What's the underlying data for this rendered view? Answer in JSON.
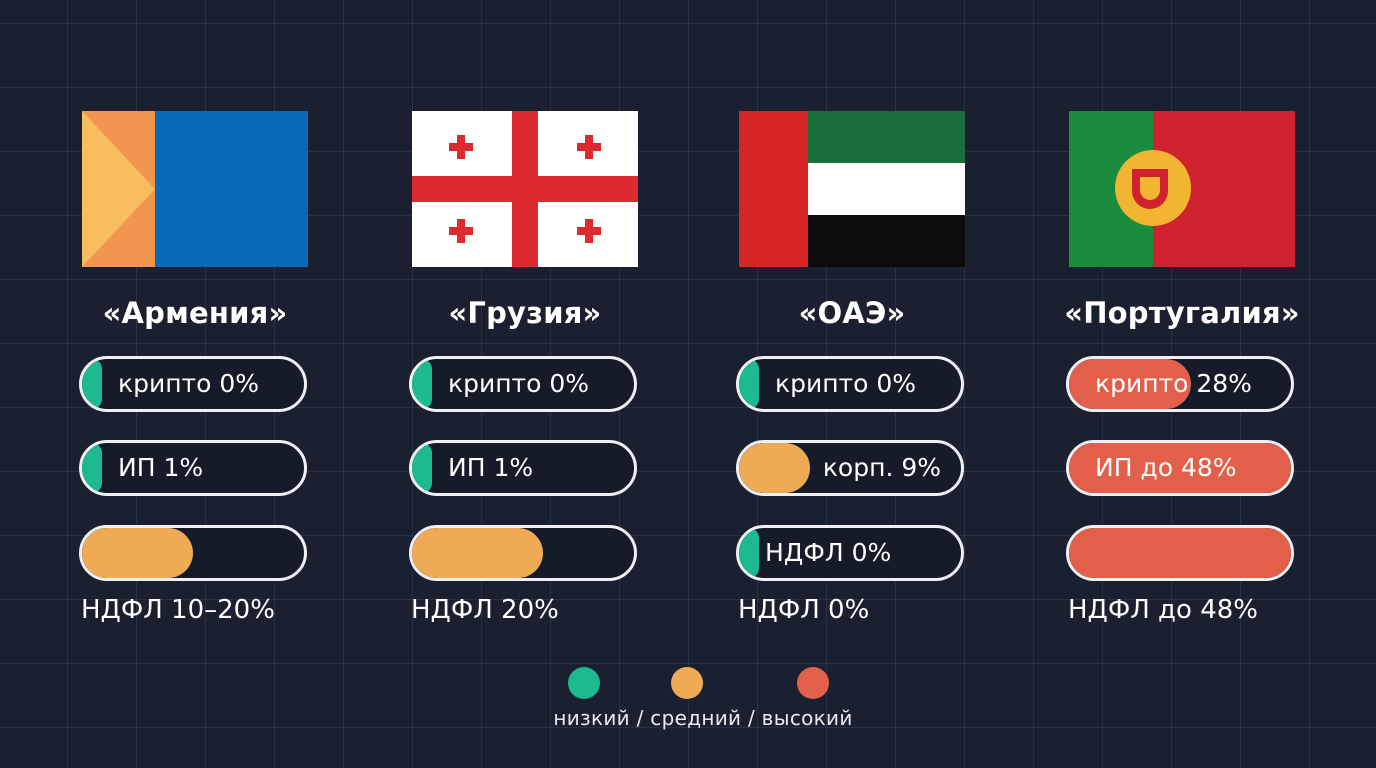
{
  "colors": {
    "low": "#1db990",
    "mid": "#eeaa55",
    "high": "#e2604a"
  },
  "countries": [
    {
      "name": "«Армения»",
      "flag_icon": "armenia-flag-icon",
      "metrics": [
        {
          "label": "крипто 0%",
          "level": "low",
          "fill_fraction": 0.09
        },
        {
          "label": "ИП 1%",
          "level": "low",
          "fill_fraction": 0.09
        },
        {
          "label": "",
          "level": "mid",
          "fill_fraction": 0.5
        }
      ],
      "footnote": "НДФЛ 10–20%"
    },
    {
      "name": "«Грузия»",
      "flag_icon": "georgia-flag-icon",
      "metrics": [
        {
          "label": "крипто 0%",
          "level": "low",
          "fill_fraction": 0.09
        },
        {
          "label": "ИП 1%",
          "level": "low",
          "fill_fraction": 0.09
        },
        {
          "label": "",
          "level": "mid",
          "fill_fraction": 0.59
        }
      ],
      "footnote": "НДФЛ 20%"
    },
    {
      "name": "«ОАЭ»",
      "flag_icon": "uae-flag-icon",
      "metrics": [
        {
          "label": "крипто 0%",
          "level": "low",
          "fill_fraction": 0.09
        },
        {
          "label": "корп. 9%",
          "level": "mid",
          "fill_fraction": 0.32
        },
        {
          "label": "НДФЛ 0%",
          "level": "low",
          "fill_fraction": 0.09
        }
      ],
      "footnote": "НДФЛ 0%"
    },
    {
      "name": "«Португалия»",
      "flag_icon": "portugal-flag-icon",
      "metrics": [
        {
          "label": "крипто 28%",
          "level": "high",
          "fill_fraction": 0.55
        },
        {
          "label": "ИП до 48%",
          "level": "high",
          "fill_fraction": 1.0
        },
        {
          "label": "",
          "level": "high",
          "fill_fraction": 1.0
        }
      ],
      "footnote": "НДФЛ до 48%"
    }
  ],
  "legend": {
    "items": [
      "low",
      "mid",
      "high"
    ],
    "text": "низкий / средний / высокий"
  }
}
